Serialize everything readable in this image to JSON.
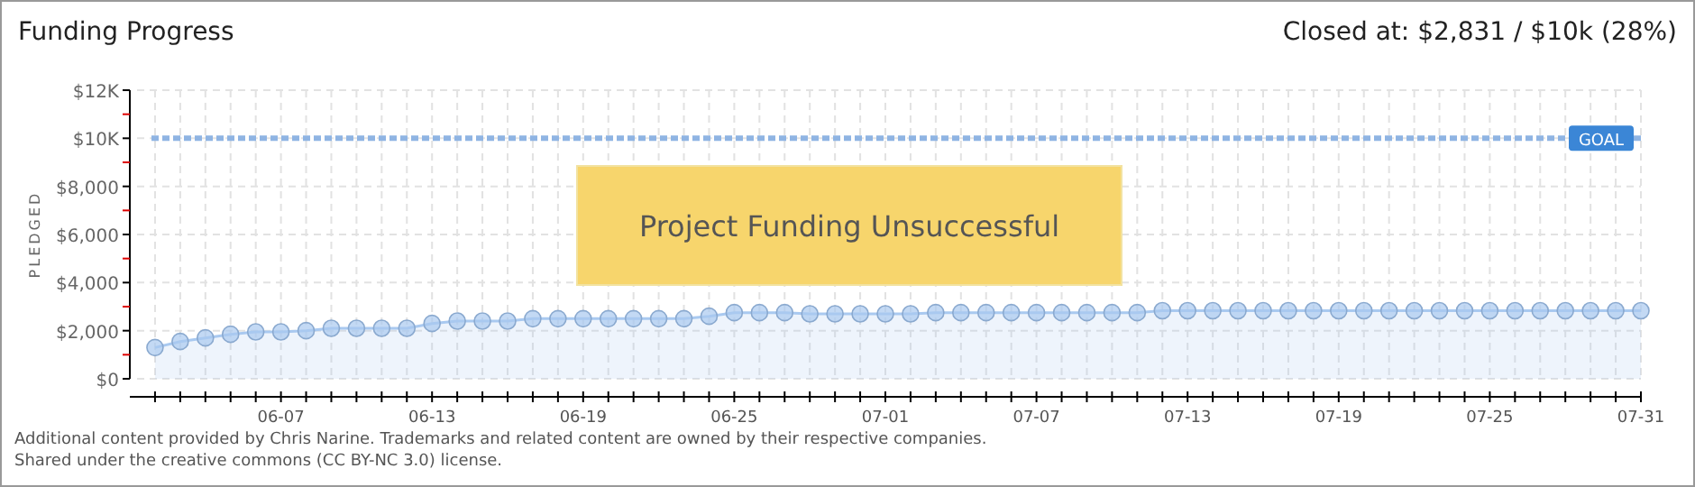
{
  "chart_data": {
    "type": "area",
    "title": "Funding Progress",
    "subtitle": "Closed at: $2,831 / $10k (28%)",
    "ylabel": "PLEDGED",
    "annotations": [
      "Project Funding Unsuccessful",
      "Additional content provided by Chris Narine. Trademarks and related content are owned by their respective companies.",
      "Shared under the creative commons (CC BY-NC 3.0) license."
    ],
    "x": [
      "--06-02",
      "--06-03",
      "--06-04",
      "--06-05",
      "--06-06",
      "--06-07",
      "--06-08",
      "--06-09",
      "--06-10",
      "--06-11",
      "--06-12",
      "--06-13",
      "--06-14",
      "--06-15",
      "--06-16",
      "--06-17",
      "--06-18",
      "--06-19",
      "--06-20",
      "--06-21",
      "--06-22",
      "--06-23",
      "--06-24",
      "--06-25",
      "--06-26",
      "--06-27",
      "--06-28",
      "--06-29",
      "--06-30",
      "--07-01",
      "--07-02",
      "--07-03",
      "--07-04",
      "--07-05",
      "--07-06",
      "--07-07",
      "--07-08",
      "--07-09",
      "--07-10",
      "--07-11",
      "--07-12",
      "--07-13",
      "--07-14",
      "--07-15",
      "--07-16",
      "--07-17",
      "--07-18",
      "--07-19",
      "--07-20",
      "--07-21",
      "--07-22",
      "--07-23",
      "--07-24",
      "--07-25",
      "--07-26",
      "--07-27",
      "--07-28",
      "--07-29",
      "--07-30",
      "--07-31"
    ],
    "series": [
      {
        "color": "#a9c9f0",
        "values": [
          1300,
          1550,
          1700,
          1850,
          1950,
          1950,
          2000,
          2100,
          2100,
          2100,
          2100,
          2300,
          2400,
          2400,
          2400,
          2500,
          2500,
          2500,
          2500,
          2500,
          2500,
          2500,
          2600,
          2750,
          2750,
          2750,
          2700,
          2700,
          2700,
          2700,
          2700,
          2750,
          2750,
          2750,
          2750,
          2750,
          2750,
          2750,
          2750,
          2750,
          2831,
          2831,
          2831,
          2831,
          2831,
          2831,
          2831,
          2831,
          2831,
          2831,
          2831,
          2831,
          2831,
          2831,
          2831,
          2831,
          2831,
          2831,
          2831,
          2831
        ]
      }
    ],
    "xlim": [
      "--06-01",
      "--07-31"
    ],
    "xticks": [
      {
        "value": "--06-02",
        "label": null
      },
      {
        "value": "--06-03",
        "label": null
      },
      {
        "value": "--06-04",
        "label": null
      },
      {
        "value": "--06-05",
        "label": null
      },
      {
        "value": "--06-06",
        "label": null
      },
      {
        "value": "--06-07",
        "label": "06-07"
      },
      {
        "value": "--06-08",
        "label": null
      },
      {
        "value": "--06-09",
        "label": null
      },
      {
        "value": "--06-10",
        "label": null
      },
      {
        "value": "--06-11",
        "label": null
      },
      {
        "value": "--06-12",
        "label": null
      },
      {
        "value": "--06-13",
        "label": "06-13"
      },
      {
        "value": "--06-14",
        "label": null
      },
      {
        "value": "--06-15",
        "label": null
      },
      {
        "value": "--06-16",
        "label": null
      },
      {
        "value": "--06-17",
        "label": null
      },
      {
        "value": "--06-18",
        "label": null
      },
      {
        "value": "--06-19",
        "label": "06-19"
      },
      {
        "value": "--06-20",
        "label": null
      },
      {
        "value": "--06-21",
        "label": null
      },
      {
        "value": "--06-22",
        "label": null
      },
      {
        "value": "--06-23",
        "label": null
      },
      {
        "value": "--06-24",
        "label": null
      },
      {
        "value": "--06-25",
        "label": "06-25"
      },
      {
        "value": "--06-26",
        "label": null
      },
      {
        "value": "--06-27",
        "label": null
      },
      {
        "value": "--06-28",
        "label": null
      },
      {
        "value": "--06-29",
        "label": null
      },
      {
        "value": "--06-30",
        "label": null
      },
      {
        "value": "--07-01",
        "label": "07-01"
      },
      {
        "value": "--07-02",
        "label": null
      },
      {
        "value": "--07-03",
        "label": null
      },
      {
        "value": "--07-04",
        "label": null
      },
      {
        "value": "--07-05",
        "label": null
      },
      {
        "value": "--07-06",
        "label": null
      },
      {
        "value": "--07-07",
        "label": "07-07"
      },
      {
        "value": "--07-08",
        "label": null
      },
      {
        "value": "--07-09",
        "label": null
      },
      {
        "value": "--07-10",
        "label": null
      },
      {
        "value": "--07-11",
        "label": null
      },
      {
        "value": "--07-12",
        "label": null
      },
      {
        "value": "--07-13",
        "label": "07-13"
      },
      {
        "value": "--07-14",
        "label": null
      },
      {
        "value": "--07-15",
        "label": null
      },
      {
        "value": "--07-16",
        "label": null
      },
      {
        "value": "--07-17",
        "label": null
      },
      {
        "value": "--07-18",
        "label": null
      },
      {
        "value": "--07-19",
        "label": "07-19"
      },
      {
        "value": "--07-20",
        "label": null
      },
      {
        "value": "--07-21",
        "label": null
      },
      {
        "value": "--07-22",
        "label": null
      },
      {
        "value": "--07-23",
        "label": null
      },
      {
        "value": "--07-24",
        "label": null
      },
      {
        "value": "--07-25",
        "label": "07-25"
      },
      {
        "value": "--07-26",
        "label": null
      },
      {
        "value": "--07-27",
        "label": null
      },
      {
        "value": "--07-28",
        "label": null
      },
      {
        "value": "--07-29",
        "label": null
      },
      {
        "value": "--07-30",
        "label": null
      },
      {
        "value": "--07-31",
        "label": "07-31"
      }
    ],
    "ylim": [
      0,
      12000
    ],
    "yticks": [
      {
        "value": 0,
        "label": "$0"
      },
      {
        "value": 1000,
        "label": null
      },
      {
        "value": 2000,
        "label": "$2,000"
      },
      {
        "value": 3000,
        "label": null
      },
      {
        "value": 4000,
        "label": "$4,000"
      },
      {
        "value": 5000,
        "label": null
      },
      {
        "value": 6000,
        "label": "$6,000"
      },
      {
        "value": 7000,
        "label": null
      },
      {
        "value": 8000,
        "label": "$8,000"
      },
      {
        "value": 9000,
        "label": null
      },
      {
        "value": 10000,
        "label": "$10K"
      },
      {
        "value": 11000,
        "label": null
      },
      {
        "value": 12000,
        "label": "$12K"
      }
    ],
    "ref_lines": [
      {
        "axis": "y",
        "value": 10000,
        "label": "GOAL",
        "color": "#8fb4e3",
        "line_style": "dashed"
      }
    ],
    "grid": true,
    "marker": "circle"
  }
}
